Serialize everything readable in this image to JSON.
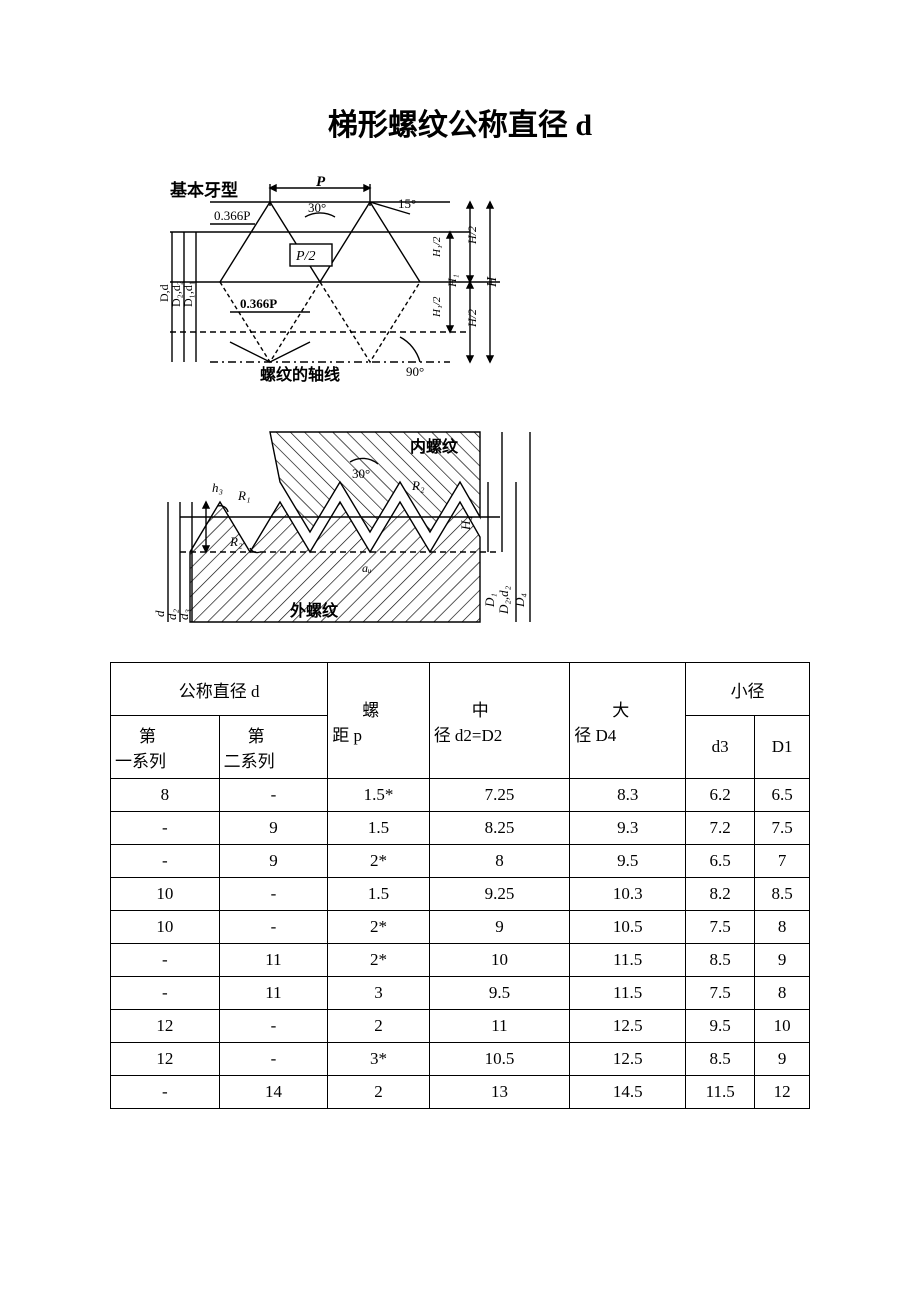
{
  "title": "梯形螺纹公称直径 d",
  "diagram1": {
    "label_basic": "基本牙型",
    "label_0366p_top": "0.366P",
    "label_0366p_bot": "0.366P",
    "label_p2": "P/2",
    "label_P": "P",
    "label_30": "30°",
    "label_15": "15°",
    "label_axis": "螺纹的轴线",
    "label_90": "90°",
    "label_H": "H",
    "label_H2_top": "H/2",
    "label_H2_bot": "H/2",
    "label_H1": "H₁",
    "label_H1_2_top": "H₁/2",
    "label_H1_2_bot": "H₁/2",
    "label_Dd": "D,d",
    "label_D2d2": "D₂,d₂",
    "label_D1d1": "D₁,d₁"
  },
  "diagram2": {
    "label_inner": "内螺纹",
    "label_outer": "外螺纹",
    "label_30": "30°",
    "label_h3": "h₃",
    "label_R1": "R₁",
    "label_R2a": "R₂",
    "label_R2b": "R₂",
    "label_H4": "H₄",
    "label_ac": "aᵤ",
    "label_d": "d",
    "label_d2": "d₂",
    "label_d3": "d₃",
    "label_D1": "D₁",
    "label_D2d2": "D₂,d₂",
    "label_D4": "D₄"
  },
  "table": {
    "headers": {
      "nominal_d": "公称直径 d",
      "series1": "第一系列",
      "series2": "第二系列",
      "pitch": "螺距 p",
      "pitch_line1": "螺",
      "pitch_line2": "距 p",
      "mid_dia": "中径 d2=D2",
      "mid_line1": "中",
      "mid_line2": "径 d2=D2",
      "major_dia": "大径 D4",
      "major_line1": "大",
      "major_line2": "径 D4",
      "minor_dia": "小径",
      "d3": "d3",
      "D1": "D1"
    },
    "rows": [
      [
        "8",
        "-",
        "1.5*",
        "7.25",
        "8.3",
        "6.2",
        "6.5"
      ],
      [
        "-",
        "9",
        "1.5",
        "8.25",
        "9.3",
        "7.2",
        "7.5"
      ],
      [
        "-",
        "9",
        "2*",
        "8",
        "9.5",
        "6.5",
        "7"
      ],
      [
        "10",
        "-",
        "1.5",
        "9.25",
        "10.3",
        "8.2",
        "8.5"
      ],
      [
        "10",
        "-",
        "2*",
        "9",
        "10.5",
        "7.5",
        "8"
      ],
      [
        "-",
        "11",
        "2*",
        "10",
        "11.5",
        "8.5",
        "9"
      ],
      [
        "-",
        "11",
        "3",
        "9.5",
        "11.5",
        "7.5",
        "8"
      ],
      [
        "12",
        "-",
        "2",
        "11",
        "12.5",
        "9.5",
        "10"
      ],
      [
        "12",
        "-",
        "3*",
        "10.5",
        "12.5",
        "8.5",
        "9"
      ],
      [
        "-",
        "14",
        "2",
        "13",
        "14.5",
        "11.5",
        "12"
      ]
    ]
  },
  "style": {
    "stroke": "#000000",
    "stroke_width": 1.4,
    "hatch_stroke": "#000000",
    "font_small": 13,
    "font_med": 15,
    "font_bold": 17
  }
}
